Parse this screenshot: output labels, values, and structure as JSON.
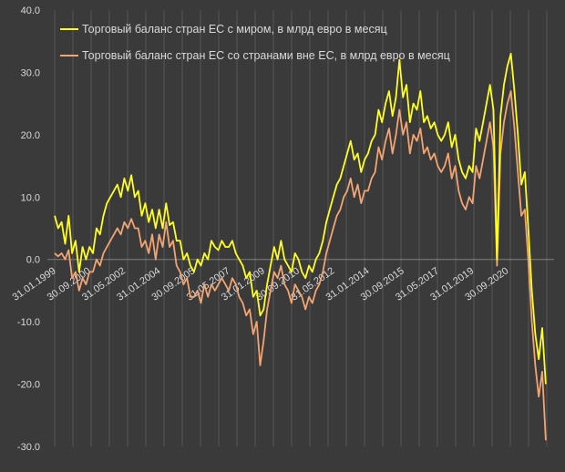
{
  "chart_data": {
    "type": "line",
    "title": "",
    "xlabel": "",
    "ylabel": "",
    "ylim": [
      -30,
      40
    ],
    "yticks": [
      40,
      30,
      20,
      10,
      0,
      -10,
      -20,
      -30
    ],
    "ytick_labels": [
      "40.0",
      "30.0",
      "20.0",
      "10.0",
      "0.0",
      "-10.0",
      "-20.0",
      "-30.0"
    ],
    "x_ticks": [
      "31.01.1999",
      "30.09.2000",
      "31.05.2002",
      "31.01.2004",
      "30.09.2005",
      "31.05.2007",
      "31.01.2009",
      "30.09.2010",
      "31.05.2012",
      "31.01.2014",
      "30.09.2015",
      "31.05.2017",
      "31.01.2019",
      "30.09.2020"
    ],
    "grid": "vertical",
    "legend_position": "top-left",
    "colors": {
      "background": "#3a3a3a",
      "grid": "#575757",
      "text": "#d9d9d9"
    },
    "series": [
      {
        "name": "Торговый баланс стран ЕС с миром, в млрд евро в месяц",
        "color": "#ffff1e",
        "points": [
          [
            "1999-01",
            7
          ],
          [
            "1999-03",
            5
          ],
          [
            "1999-05",
            6
          ],
          [
            "1999-07",
            2.5
          ],
          [
            "1999-09",
            7
          ],
          [
            "1999-11",
            1
          ],
          [
            "2000-01",
            3
          ],
          [
            "2000-03",
            -2
          ],
          [
            "2000-05",
            2
          ],
          [
            "2000-07",
            0
          ],
          [
            "2000-09",
            2
          ],
          [
            "2000-11",
            1
          ],
          [
            "2001-01",
            5
          ],
          [
            "2001-03",
            4
          ],
          [
            "2001-05",
            7
          ],
          [
            "2001-07",
            9
          ],
          [
            "2001-09",
            10
          ],
          [
            "2001-11",
            11
          ],
          [
            "2002-01",
            12
          ],
          [
            "2002-03",
            10
          ],
          [
            "2002-05",
            13
          ],
          [
            "2002-07",
            11
          ],
          [
            "2002-09",
            13.5
          ],
          [
            "2002-11",
            10
          ],
          [
            "2003-01",
            11
          ],
          [
            "2003-03",
            7
          ],
          [
            "2003-05",
            9
          ],
          [
            "2003-07",
            6
          ],
          [
            "2003-09",
            8
          ],
          [
            "2003-11",
            5
          ],
          [
            "2004-01",
            8
          ],
          [
            "2004-03",
            5
          ],
          [
            "2004-05",
            9
          ],
          [
            "2004-07",
            5.5
          ],
          [
            "2004-09",
            6
          ],
          [
            "2004-11",
            3
          ],
          [
            "2005-01",
            3
          ],
          [
            "2005-03",
            0
          ],
          [
            "2005-05",
            1
          ],
          [
            "2005-07",
            -1
          ],
          [
            "2005-09",
            -2
          ],
          [
            "2005-11",
            0
          ],
          [
            "2006-01",
            -1
          ],
          [
            "2006-03",
            1
          ],
          [
            "2006-05",
            0
          ],
          [
            "2006-07",
            3
          ],
          [
            "2006-09",
            2
          ],
          [
            "2006-11",
            1.5
          ],
          [
            "2007-01",
            3
          ],
          [
            "2007-03",
            2
          ],
          [
            "2007-05",
            2
          ],
          [
            "2007-07",
            3
          ],
          [
            "2007-09",
            1
          ],
          [
            "2007-11",
            0
          ],
          [
            "2008-01",
            -1
          ],
          [
            "2008-03",
            -3
          ],
          [
            "2008-05",
            -2
          ],
          [
            "2008-07",
            -6
          ],
          [
            "2008-09",
            -5
          ],
          [
            "2008-11",
            -9
          ],
          [
            "2009-01",
            -8
          ],
          [
            "2009-03",
            -4
          ],
          [
            "2009-05",
            -1
          ],
          [
            "2009-07",
            2
          ],
          [
            "2009-09",
            0
          ],
          [
            "2009-11",
            3
          ],
          [
            "2010-01",
            0
          ],
          [
            "2010-03",
            -1
          ],
          [
            "2010-05",
            -2
          ],
          [
            "2010-07",
            1
          ],
          [
            "2010-09",
            0
          ],
          [
            "2010-11",
            -2
          ],
          [
            "2011-01",
            -3
          ],
          [
            "2011-03",
            -1
          ],
          [
            "2011-05",
            -2
          ],
          [
            "2011-07",
            0
          ],
          [
            "2011-09",
            1
          ],
          [
            "2011-11",
            3
          ],
          [
            "2012-01",
            6
          ],
          [
            "2012-03",
            8
          ],
          [
            "2012-05",
            10
          ],
          [
            "2012-07",
            12
          ],
          [
            "2012-09",
            13
          ],
          [
            "2012-11",
            15
          ],
          [
            "2013-01",
            17
          ],
          [
            "2013-03",
            19
          ],
          [
            "2013-05",
            16
          ],
          [
            "2013-07",
            17
          ],
          [
            "2013-09",
            14
          ],
          [
            "2013-11",
            16
          ],
          [
            "2014-01",
            17
          ],
          [
            "2014-03",
            19
          ],
          [
            "2014-05",
            20
          ],
          [
            "2014-07",
            24
          ],
          [
            "2014-09",
            22
          ],
          [
            "2014-11",
            25
          ],
          [
            "2015-01",
            27
          ],
          [
            "2015-03",
            23
          ],
          [
            "2015-05",
            26
          ],
          [
            "2015-07",
            32
          ],
          [
            "2015-09",
            26
          ],
          [
            "2015-11",
            28
          ],
          [
            "2016-01",
            22
          ],
          [
            "2016-03",
            25
          ],
          [
            "2016-05",
            24
          ],
          [
            "2016-07",
            27
          ],
          [
            "2016-09",
            22
          ],
          [
            "2016-11",
            23
          ],
          [
            "2017-01",
            21
          ],
          [
            "2017-03",
            22
          ],
          [
            "2017-05",
            20
          ],
          [
            "2017-07",
            19
          ],
          [
            "2017-09",
            20
          ],
          [
            "2017-11",
            22
          ],
          [
            "2018-01",
            18
          ],
          [
            "2018-03",
            20
          ],
          [
            "2018-05",
            16
          ],
          [
            "2018-07",
            14
          ],
          [
            "2018-09",
            13
          ],
          [
            "2018-11",
            15
          ],
          [
            "2019-01",
            14
          ],
          [
            "2019-03",
            21
          ],
          [
            "2019-05",
            19
          ],
          [
            "2019-07",
            22
          ],
          [
            "2019-09",
            25
          ],
          [
            "2019-11",
            28
          ],
          [
            "2020-01",
            24
          ],
          [
            "2020-03",
            0
          ],
          [
            "2020-05",
            23
          ],
          [
            "2020-07",
            28
          ],
          [
            "2020-09",
            31
          ],
          [
            "2020-11",
            33
          ],
          [
            "2021-01",
            27
          ],
          [
            "2021-03",
            20
          ],
          [
            "2021-05",
            12
          ],
          [
            "2021-07",
            14
          ],
          [
            "2021-09",
            5
          ],
          [
            "2021-11",
            -5
          ],
          [
            "2022-01",
            -12
          ],
          [
            "2022-03",
            -16
          ],
          [
            "2022-05",
            -11
          ],
          [
            "2022-07",
            -20
          ]
        ]
      },
      {
        "name": "Торговый баланс стран ЕС со странами вне ЕС, в млрд евро в месяц",
        "color": "#f2a573",
        "points": [
          [
            "1999-01",
            1
          ],
          [
            "1999-03",
            0.5
          ],
          [
            "1999-05",
            1
          ],
          [
            "1999-07",
            0
          ],
          [
            "1999-09",
            1.5
          ],
          [
            "1999-11",
            -3
          ],
          [
            "2000-01",
            -2
          ],
          [
            "2000-03",
            -5
          ],
          [
            "2000-05",
            -3
          ],
          [
            "2000-07",
            -4
          ],
          [
            "2000-09",
            -2
          ],
          [
            "2000-11",
            -2
          ],
          [
            "2001-01",
            0
          ],
          [
            "2001-03",
            -1
          ],
          [
            "2001-05",
            1
          ],
          [
            "2001-07",
            2
          ],
          [
            "2001-09",
            3
          ],
          [
            "2001-11",
            4
          ],
          [
            "2002-01",
            5
          ],
          [
            "2002-03",
            4
          ],
          [
            "2002-05",
            6
          ],
          [
            "2002-07",
            5
          ],
          [
            "2002-09",
            6.5
          ],
          [
            "2002-11",
            5
          ],
          [
            "2003-01",
            5
          ],
          [
            "2003-03",
            2
          ],
          [
            "2003-05",
            3
          ],
          [
            "2003-07",
            1
          ],
          [
            "2003-09",
            4
          ],
          [
            "2003-11",
            0
          ],
          [
            "2004-01",
            4
          ],
          [
            "2004-03",
            2
          ],
          [
            "2004-05",
            6
          ],
          [
            "2004-07",
            2
          ],
          [
            "2004-09",
            3
          ],
          [
            "2004-11",
            -1
          ],
          [
            "2005-01",
            -2
          ],
          [
            "2005-03",
            -4
          ],
          [
            "2005-05",
            -3
          ],
          [
            "2005-07",
            -6
          ],
          [
            "2005-09",
            -6
          ],
          [
            "2005-11",
            -5
          ],
          [
            "2006-01",
            -7
          ],
          [
            "2006-03",
            -4
          ],
          [
            "2006-05",
            -6
          ],
          [
            "2006-07",
            -4
          ],
          [
            "2006-09",
            -5
          ],
          [
            "2006-11",
            -4
          ],
          [
            "2007-01",
            -3
          ],
          [
            "2007-03",
            -4
          ],
          [
            "2007-05",
            -5
          ],
          [
            "2007-07",
            -3
          ],
          [
            "2007-09",
            -4
          ],
          [
            "2007-11",
            -6
          ],
          [
            "2008-01",
            -7
          ],
          [
            "2008-03",
            -9
          ],
          [
            "2008-05",
            -8
          ],
          [
            "2008-07",
            -12
          ],
          [
            "2008-09",
            -10
          ],
          [
            "2008-11",
            -17
          ],
          [
            "2009-01",
            -13
          ],
          [
            "2009-03",
            -8
          ],
          [
            "2009-05",
            -5
          ],
          [
            "2009-07",
            -2
          ],
          [
            "2009-09",
            -3
          ],
          [
            "2009-11",
            -1
          ],
          [
            "2010-01",
            -4
          ],
          [
            "2010-03",
            -5
          ],
          [
            "2010-05",
            -7
          ],
          [
            "2010-07",
            -4
          ],
          [
            "2010-09",
            -5
          ],
          [
            "2010-11",
            -6
          ],
          [
            "2011-01",
            -8
          ],
          [
            "2011-03",
            -6
          ],
          [
            "2011-05",
            -7
          ],
          [
            "2011-07",
            -5
          ],
          [
            "2011-09",
            -4
          ],
          [
            "2011-11",
            -2
          ],
          [
            "2012-01",
            1
          ],
          [
            "2012-03",
            3
          ],
          [
            "2012-05",
            5
          ],
          [
            "2012-07",
            7
          ],
          [
            "2012-09",
            8
          ],
          [
            "2012-11",
            10
          ],
          [
            "2013-01",
            11
          ],
          [
            "2013-03",
            13
          ],
          [
            "2013-05",
            10
          ],
          [
            "2013-07",
            12
          ],
          [
            "2013-09",
            9
          ],
          [
            "2013-11",
            11
          ],
          [
            "2014-01",
            11
          ],
          [
            "2014-03",
            13
          ],
          [
            "2014-05",
            14
          ],
          [
            "2014-07",
            18
          ],
          [
            "2014-09",
            16
          ],
          [
            "2014-11",
            19
          ],
          [
            "2015-01",
            21
          ],
          [
            "2015-03",
            17
          ],
          [
            "2015-05",
            20
          ],
          [
            "2015-07",
            24
          ],
          [
            "2015-09",
            20
          ],
          [
            "2015-11",
            22
          ],
          [
            "2016-01",
            17
          ],
          [
            "2016-03",
            20
          ],
          [
            "2016-05",
            19
          ],
          [
            "2016-07",
            21
          ],
          [
            "2016-09",
            17
          ],
          [
            "2016-11",
            18
          ],
          [
            "2017-01",
            16
          ],
          [
            "2017-03",
            17
          ],
          [
            "2017-05",
            15
          ],
          [
            "2017-07",
            14
          ],
          [
            "2017-09",
            15
          ],
          [
            "2017-11",
            17
          ],
          [
            "2018-01",
            13
          ],
          [
            "2018-03",
            15
          ],
          [
            "2018-05",
            11
          ],
          [
            "2018-07",
            9
          ],
          [
            "2018-09",
            8
          ],
          [
            "2018-11",
            10
          ],
          [
            "2019-01",
            9
          ],
          [
            "2019-03",
            15
          ],
          [
            "2019-05",
            13
          ],
          [
            "2019-07",
            16
          ],
          [
            "2019-09",
            19
          ],
          [
            "2019-11",
            22
          ],
          [
            "2020-01",
            18
          ],
          [
            "2020-03",
            -1
          ],
          [
            "2020-05",
            17
          ],
          [
            "2020-07",
            22
          ],
          [
            "2020-09",
            25
          ],
          [
            "2020-11",
            27
          ],
          [
            "2021-01",
            21
          ],
          [
            "2021-03",
            14
          ],
          [
            "2021-05",
            7
          ],
          [
            "2021-07",
            8
          ],
          [
            "2021-09",
            0
          ],
          [
            "2021-11",
            -10
          ],
          [
            "2022-01",
            -17
          ],
          [
            "2022-03",
            -22
          ],
          [
            "2022-05",
            -18
          ],
          [
            "2022-07",
            -29
          ]
        ]
      }
    ]
  }
}
